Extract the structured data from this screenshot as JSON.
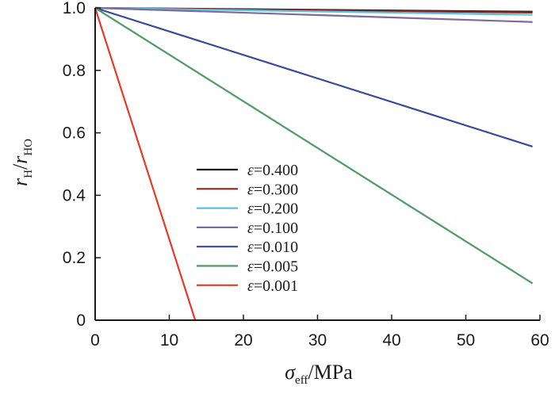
{
  "chart_data": {
    "type": "line",
    "title": "",
    "xlabel": {
      "main": "σ",
      "sub": "eff",
      "unit": "/MPa"
    },
    "ylabel": {
      "a": "r",
      "a_sub": "H",
      "slash": "/",
      "b": "r",
      "b_sub": "HO"
    },
    "xlim": [
      0,
      60
    ],
    "ylim": [
      0,
      1.0
    ],
    "xticks": [
      0,
      10,
      20,
      30,
      40,
      50,
      60
    ],
    "yticks": [
      0,
      0.2,
      0.4,
      0.6,
      0.8,
      1.0
    ],
    "xtick_labels": [
      "0",
      "10",
      "20",
      "30",
      "40",
      "50",
      "60"
    ],
    "ytick_labels": [
      "0",
      "0.2",
      "0.4",
      "0.6",
      "0.8",
      "1.0"
    ],
    "legend_position": "center-left",
    "grid": false,
    "series": [
      {
        "name": "ε=0.400",
        "eps_symbol": "ε",
        "eps_value": "=0.400",
        "color": "#1a1a1a",
        "x": [
          0,
          59
        ],
        "y": [
          1.0,
          0.988
        ]
      },
      {
        "name": "ε=0.300",
        "eps_symbol": "ε",
        "eps_value": "=0.300",
        "color": "#8b2a1a",
        "x": [
          0,
          59
        ],
        "y": [
          1.0,
          0.985
        ]
      },
      {
        "name": "ε=0.200",
        "eps_symbol": "ε",
        "eps_value": "=0.200",
        "color": "#5bbfe6",
        "x": [
          0,
          59
        ],
        "y": [
          1.0,
          0.978
        ]
      },
      {
        "name": "ε=0.100",
        "eps_symbol": "ε",
        "eps_value": "=0.100",
        "color": "#7e6a9c",
        "x": [
          0,
          59
        ],
        "y": [
          1.0,
          0.955
        ]
      },
      {
        "name": "ε=0.010",
        "eps_symbol": "ε",
        "eps_value": "=0.010",
        "color": "#3a4a9c",
        "x": [
          0,
          59
        ],
        "y": [
          1.0,
          0.556
        ]
      },
      {
        "name": "ε=0.005",
        "eps_symbol": "ε",
        "eps_value": "=0.005",
        "color": "#4f9a66",
        "x": [
          0,
          59
        ],
        "y": [
          1.0,
          0.118
        ]
      },
      {
        "name": "ε=0.001",
        "eps_symbol": "ε",
        "eps_value": "=0.001",
        "color": "#e8382a",
        "x": [
          0,
          13.5
        ],
        "y": [
          1.0,
          0.0
        ]
      }
    ]
  }
}
